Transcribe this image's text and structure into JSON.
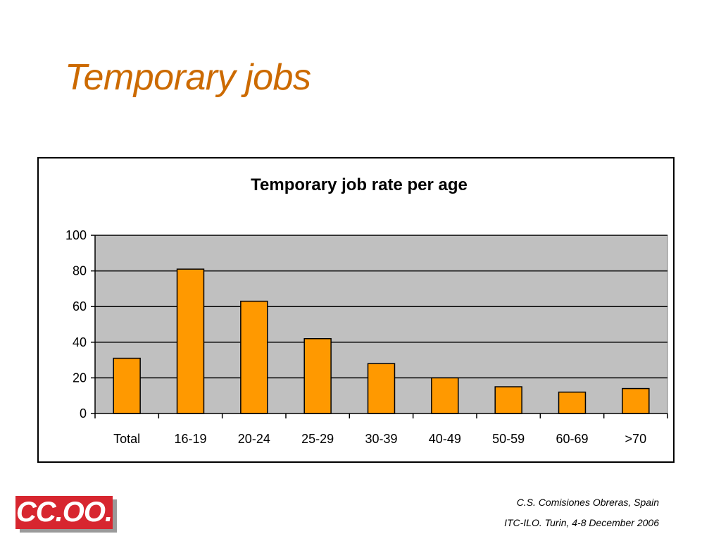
{
  "slide": {
    "title": "Temporary jobs"
  },
  "footer": {
    "line1": "C.S. Comisiones Obreras, Spain",
    "line2": "ITC-ILO. Turin, 4-8 December 2006"
  },
  "logo": {
    "text": "CC.OO."
  },
  "colors": {
    "title": "#cc6a00",
    "bar": "#ff9900",
    "plot_bg": "#c0c0c0",
    "logo_red": "#d7262f"
  },
  "chart_data": {
    "type": "bar",
    "title": "Temporary job rate per age",
    "xlabel": "",
    "ylabel": "",
    "categories": [
      "Total",
      "16-19",
      "20-24",
      "25-29",
      "30-39",
      "40-49",
      "50-59",
      "60-69",
      ">70"
    ],
    "values": [
      31,
      81,
      63,
      42,
      28,
      20,
      15,
      12,
      14
    ],
    "ylim": [
      0,
      100
    ],
    "yticks": [
      "0",
      "20",
      "40",
      "60",
      "80",
      "100"
    ],
    "grid": true,
    "legend": "none"
  }
}
